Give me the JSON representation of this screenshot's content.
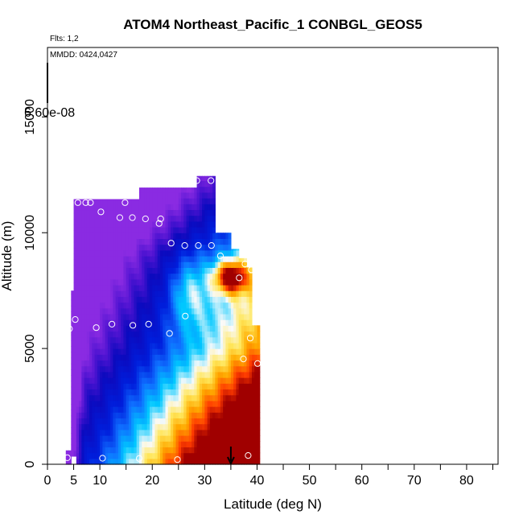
{
  "chart_data": {
    "type": "heatmap",
    "title": "ATOM4 Northeast_Pacific_1 CONBGL_GEOS5",
    "flights_label": "Flts: 1,2",
    "date_label": "MMDD: 0424,0427",
    "xlabel": "Latitude (deg N)",
    "ylabel": "Altitude (m)",
    "xlim": [
      0,
      86
    ],
    "ylim": [
      0,
      18000
    ],
    "x_ticks": [
      0,
      5,
      10,
      20,
      30,
      40,
      50,
      60,
      70,
      80
    ],
    "x_ticks_unlabeled": [
      15,
      25,
      35,
      45,
      55,
      65,
      75,
      85
    ],
    "y_ticks": [
      0,
      5000,
      10000,
      15000
    ],
    "colorbar_max_label": "6.60e-08",
    "colors": {
      "background": "#ffffff",
      "observation_marker": "#ffffff",
      "arrow": "#000000"
    },
    "arrow_marker_latitude": 35,
    "observations": [
      {
        "lat": 3.8,
        "alt": 280
      },
      {
        "lat": 10.5,
        "alt": 260
      },
      {
        "lat": 17.5,
        "alt": 250
      },
      {
        "lat": 24.8,
        "alt": 200
      },
      {
        "lat": 38.3,
        "alt": 380
      },
      {
        "lat": 4.2,
        "alt": 5850
      },
      {
        "lat": 5.3,
        "alt": 6250
      },
      {
        "lat": 9.3,
        "alt": 5900
      },
      {
        "lat": 12.3,
        "alt": 6050
      },
      {
        "lat": 16.3,
        "alt": 6000
      },
      {
        "lat": 19.3,
        "alt": 6050
      },
      {
        "lat": 23.3,
        "alt": 5650
      },
      {
        "lat": 26.3,
        "alt": 6400
      },
      {
        "lat": 37.4,
        "alt": 4550
      },
      {
        "lat": 38.7,
        "alt": 5450
      },
      {
        "lat": 40.1,
        "alt": 4350
      },
      {
        "lat": 5.8,
        "alt": 11300
      },
      {
        "lat": 7.3,
        "alt": 11300
      },
      {
        "lat": 8.2,
        "alt": 11300
      },
      {
        "lat": 10.2,
        "alt": 10900
      },
      {
        "lat": 13.8,
        "alt": 10650
      },
      {
        "lat": 14.8,
        "alt": 11300
      },
      {
        "lat": 16.2,
        "alt": 10650
      },
      {
        "lat": 18.7,
        "alt": 10600
      },
      {
        "lat": 21.3,
        "alt": 10400
      },
      {
        "lat": 21.6,
        "alt": 10600
      },
      {
        "lat": 23.6,
        "alt": 9550
      },
      {
        "lat": 26.2,
        "alt": 9450
      },
      {
        "lat": 28.8,
        "alt": 9450
      },
      {
        "lat": 31.3,
        "alt": 9450
      },
      {
        "lat": 33.0,
        "alt": 9000
      },
      {
        "lat": 36.6,
        "alt": 8050
      },
      {
        "lat": 37.7,
        "alt": 8650
      },
      {
        "lat": 38.9,
        "alt": 8400
      },
      {
        "lat": 28.5,
        "alt": 12250
      },
      {
        "lat": 31.2,
        "alt": 12250
      }
    ]
  }
}
